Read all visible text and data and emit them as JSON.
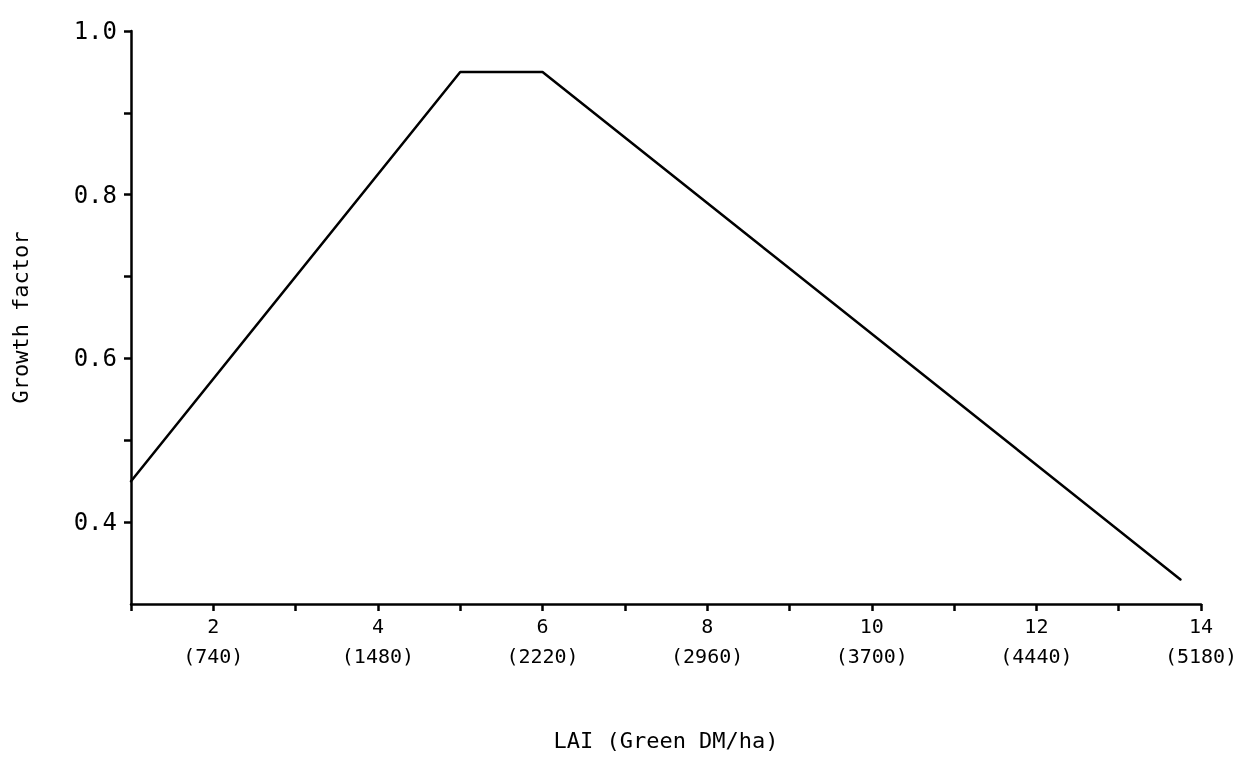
{
  "chart_data": {
    "type": "line",
    "xlabel": "LAI (Green DM/ha)",
    "ylabel": "Growth factor",
    "x": [
      1,
      5,
      6,
      13.75
    ],
    "series": [
      {
        "color": "#000000",
        "values": [
          0.45,
          0.95,
          0.95,
          0.33
        ]
      }
    ],
    "xlim": [
      1,
      14
    ],
    "xticks": [
      {
        "value": 1,
        "label": null
      },
      2,
      {
        "value": 3,
        "label": null
      },
      4,
      {
        "value": 5,
        "label": null
      },
      6,
      {
        "value": 7,
        "label": null
      },
      8,
      {
        "value": 9,
        "label": null
      },
      10,
      {
        "value": 11,
        "label": null
      },
      12,
      {
        "value": 13,
        "label": null
      },
      14
    ],
    "x2lim": [
      370,
      5180
    ],
    "x2ticks": [
      {
        "value": 740,
        "label": "(740)"
      },
      {
        "value": 1480,
        "label": "(1480)"
      },
      {
        "value": 2220,
        "label": "(2220)"
      },
      {
        "value": 2960,
        "label": "(2960)"
      },
      {
        "value": 3700,
        "label": "(3700)"
      },
      {
        "value": 4440,
        "label": "(4440)"
      },
      {
        "value": 5180,
        "label": "(5180)"
      }
    ],
    "ylim": [
      0.3,
      1.0
    ],
    "yticks": [
      {
        "value": 0.4,
        "label": "0.4"
      },
      {
        "value": 0.5,
        "label": null
      },
      {
        "value": 0.6,
        "label": "0.6"
      },
      {
        "value": 0.7,
        "label": null
      },
      {
        "value": 0.8,
        "label": "0.8"
      },
      {
        "value": 0.9,
        "label": null
      },
      {
        "value": 1.0,
        "label": "1.0"
      }
    ],
    "grid": false,
    "marker": "none",
    "line_style": "solid"
  }
}
